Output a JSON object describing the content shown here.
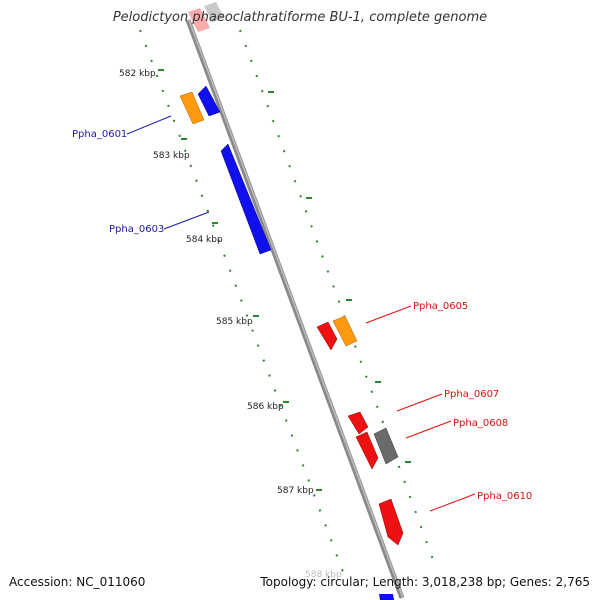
{
  "title": "Pelodictyon phaeoclathratiforme BU-1, complete genome",
  "footer": {
    "accession": "Accession: NC_011060",
    "summary": "Topology: circular; Length: 3,018,238 bp; Genes: 2,765"
  },
  "colors": {
    "backbone": "#8a8a8a",
    "tick": "#2a8a2a",
    "forward_label": "#1a1aaa",
    "reverse_label": "#dd1111",
    "blue": "#1010ee",
    "red": "#ee1111",
    "orange": "#ff9a10",
    "gray": "#6a6a6a"
  },
  "axis_labels": [
    "582 kbp",
    "583 kbp",
    "584 kbp",
    "585 kbp",
    "586 kbp",
    "587 kbp",
    "588 kbp"
  ],
  "gene_labels": {
    "left": [
      "Ppha_0601",
      "Ppha_0603"
    ],
    "right": [
      "Ppha_0605",
      "Ppha_0607",
      "Ppha_0608",
      "Ppha_0610"
    ]
  }
}
